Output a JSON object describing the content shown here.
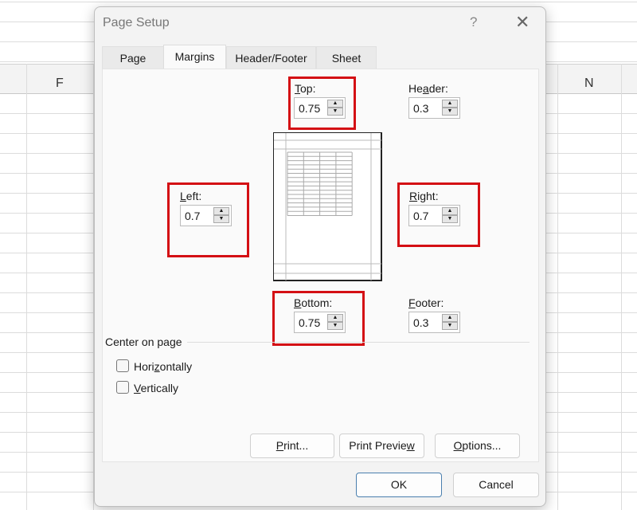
{
  "spreadsheet": {
    "columns": [
      "F",
      "N"
    ]
  },
  "dialog": {
    "title": "Page Setup",
    "help": "?",
    "close": "✕",
    "tabs": [
      {
        "label": "Page"
      },
      {
        "label": "Margins",
        "active": true
      },
      {
        "label": "Header/Footer"
      },
      {
        "label": "Sheet"
      }
    ],
    "fields": {
      "top": {
        "pre": "",
        "key": "T",
        "post": "op:",
        "value": "0.75"
      },
      "header": {
        "pre": "He",
        "key": "a",
        "post": "der:",
        "value": "0.3"
      },
      "left": {
        "pre": "",
        "key": "L",
        "post": "eft:",
        "value": "0.7"
      },
      "right": {
        "pre": "",
        "key": "R",
        "post": "ight:",
        "value": "0.7"
      },
      "bottom": {
        "pre": "",
        "key": "B",
        "post": "ottom:",
        "value": "0.75"
      },
      "footer": {
        "pre": "",
        "key": "F",
        "post": "ooter:",
        "value": "0.3"
      }
    },
    "center": {
      "label": "Center on page",
      "horizontally": {
        "pre": "Hori",
        "key": "z",
        "post": "ontally",
        "checked": false
      },
      "vertically": {
        "pre": "",
        "key": "V",
        "post": "ertically",
        "checked": false
      }
    },
    "buttons": {
      "print": {
        "pre": "",
        "key": "P",
        "post": "rint..."
      },
      "preview": {
        "pre": "Print Previe",
        "key": "w",
        "post": ""
      },
      "options": {
        "pre": "",
        "key": "O",
        "post": "ptions..."
      },
      "ok": "OK",
      "cancel": "Cancel"
    },
    "highlight_color": "#d40f14"
  }
}
